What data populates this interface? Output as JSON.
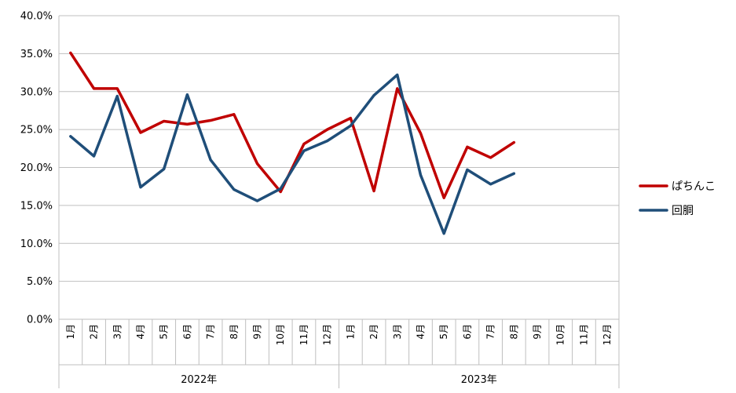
{
  "chart_data": {
    "type": "line",
    "title": "",
    "xlabel": "",
    "ylabel": "",
    "ylim": [
      0,
      40
    ],
    "y_tick_labels": [
      "0.0%",
      "5.0%",
      "10.0%",
      "15.0%",
      "20.0%",
      "25.0%",
      "30.0%",
      "35.0%",
      "40.0%"
    ],
    "categories": [
      "1月",
      "2月",
      "3月",
      "4月",
      "5月",
      "6月",
      "7月",
      "8月",
      "9月",
      "10月",
      "11月",
      "12月",
      "1月",
      "2月",
      "3月",
      "4月",
      "5月",
      "6月",
      "7月",
      "8月",
      "9月",
      "10月",
      "11月",
      "12月"
    ],
    "groups": [
      {
        "label": "2022年",
        "count": 12
      },
      {
        "label": "2023年",
        "count": 12
      }
    ],
    "grid": "horizontal",
    "legend_position": "right",
    "series": [
      {
        "name": "ぱちんこ",
        "color": "#C00000",
        "values": [
          35.1,
          30.4,
          30.4,
          24.6,
          26.1,
          25.7,
          26.2,
          27.0,
          20.5,
          16.8,
          23.1,
          25.0,
          26.5,
          16.9,
          30.4,
          24.5,
          16.0,
          22.7,
          21.3,
          23.3,
          null,
          null,
          null,
          null
        ]
      },
      {
        "name": "回胴",
        "color": "#1F4E79",
        "values": [
          24.1,
          21.5,
          29.4,
          17.4,
          19.8,
          29.6,
          21.0,
          17.1,
          15.6,
          17.2,
          22.2,
          23.5,
          25.5,
          29.5,
          32.2,
          19.0,
          11.3,
          19.7,
          17.8,
          19.2,
          null,
          null,
          null,
          null
        ]
      }
    ]
  }
}
